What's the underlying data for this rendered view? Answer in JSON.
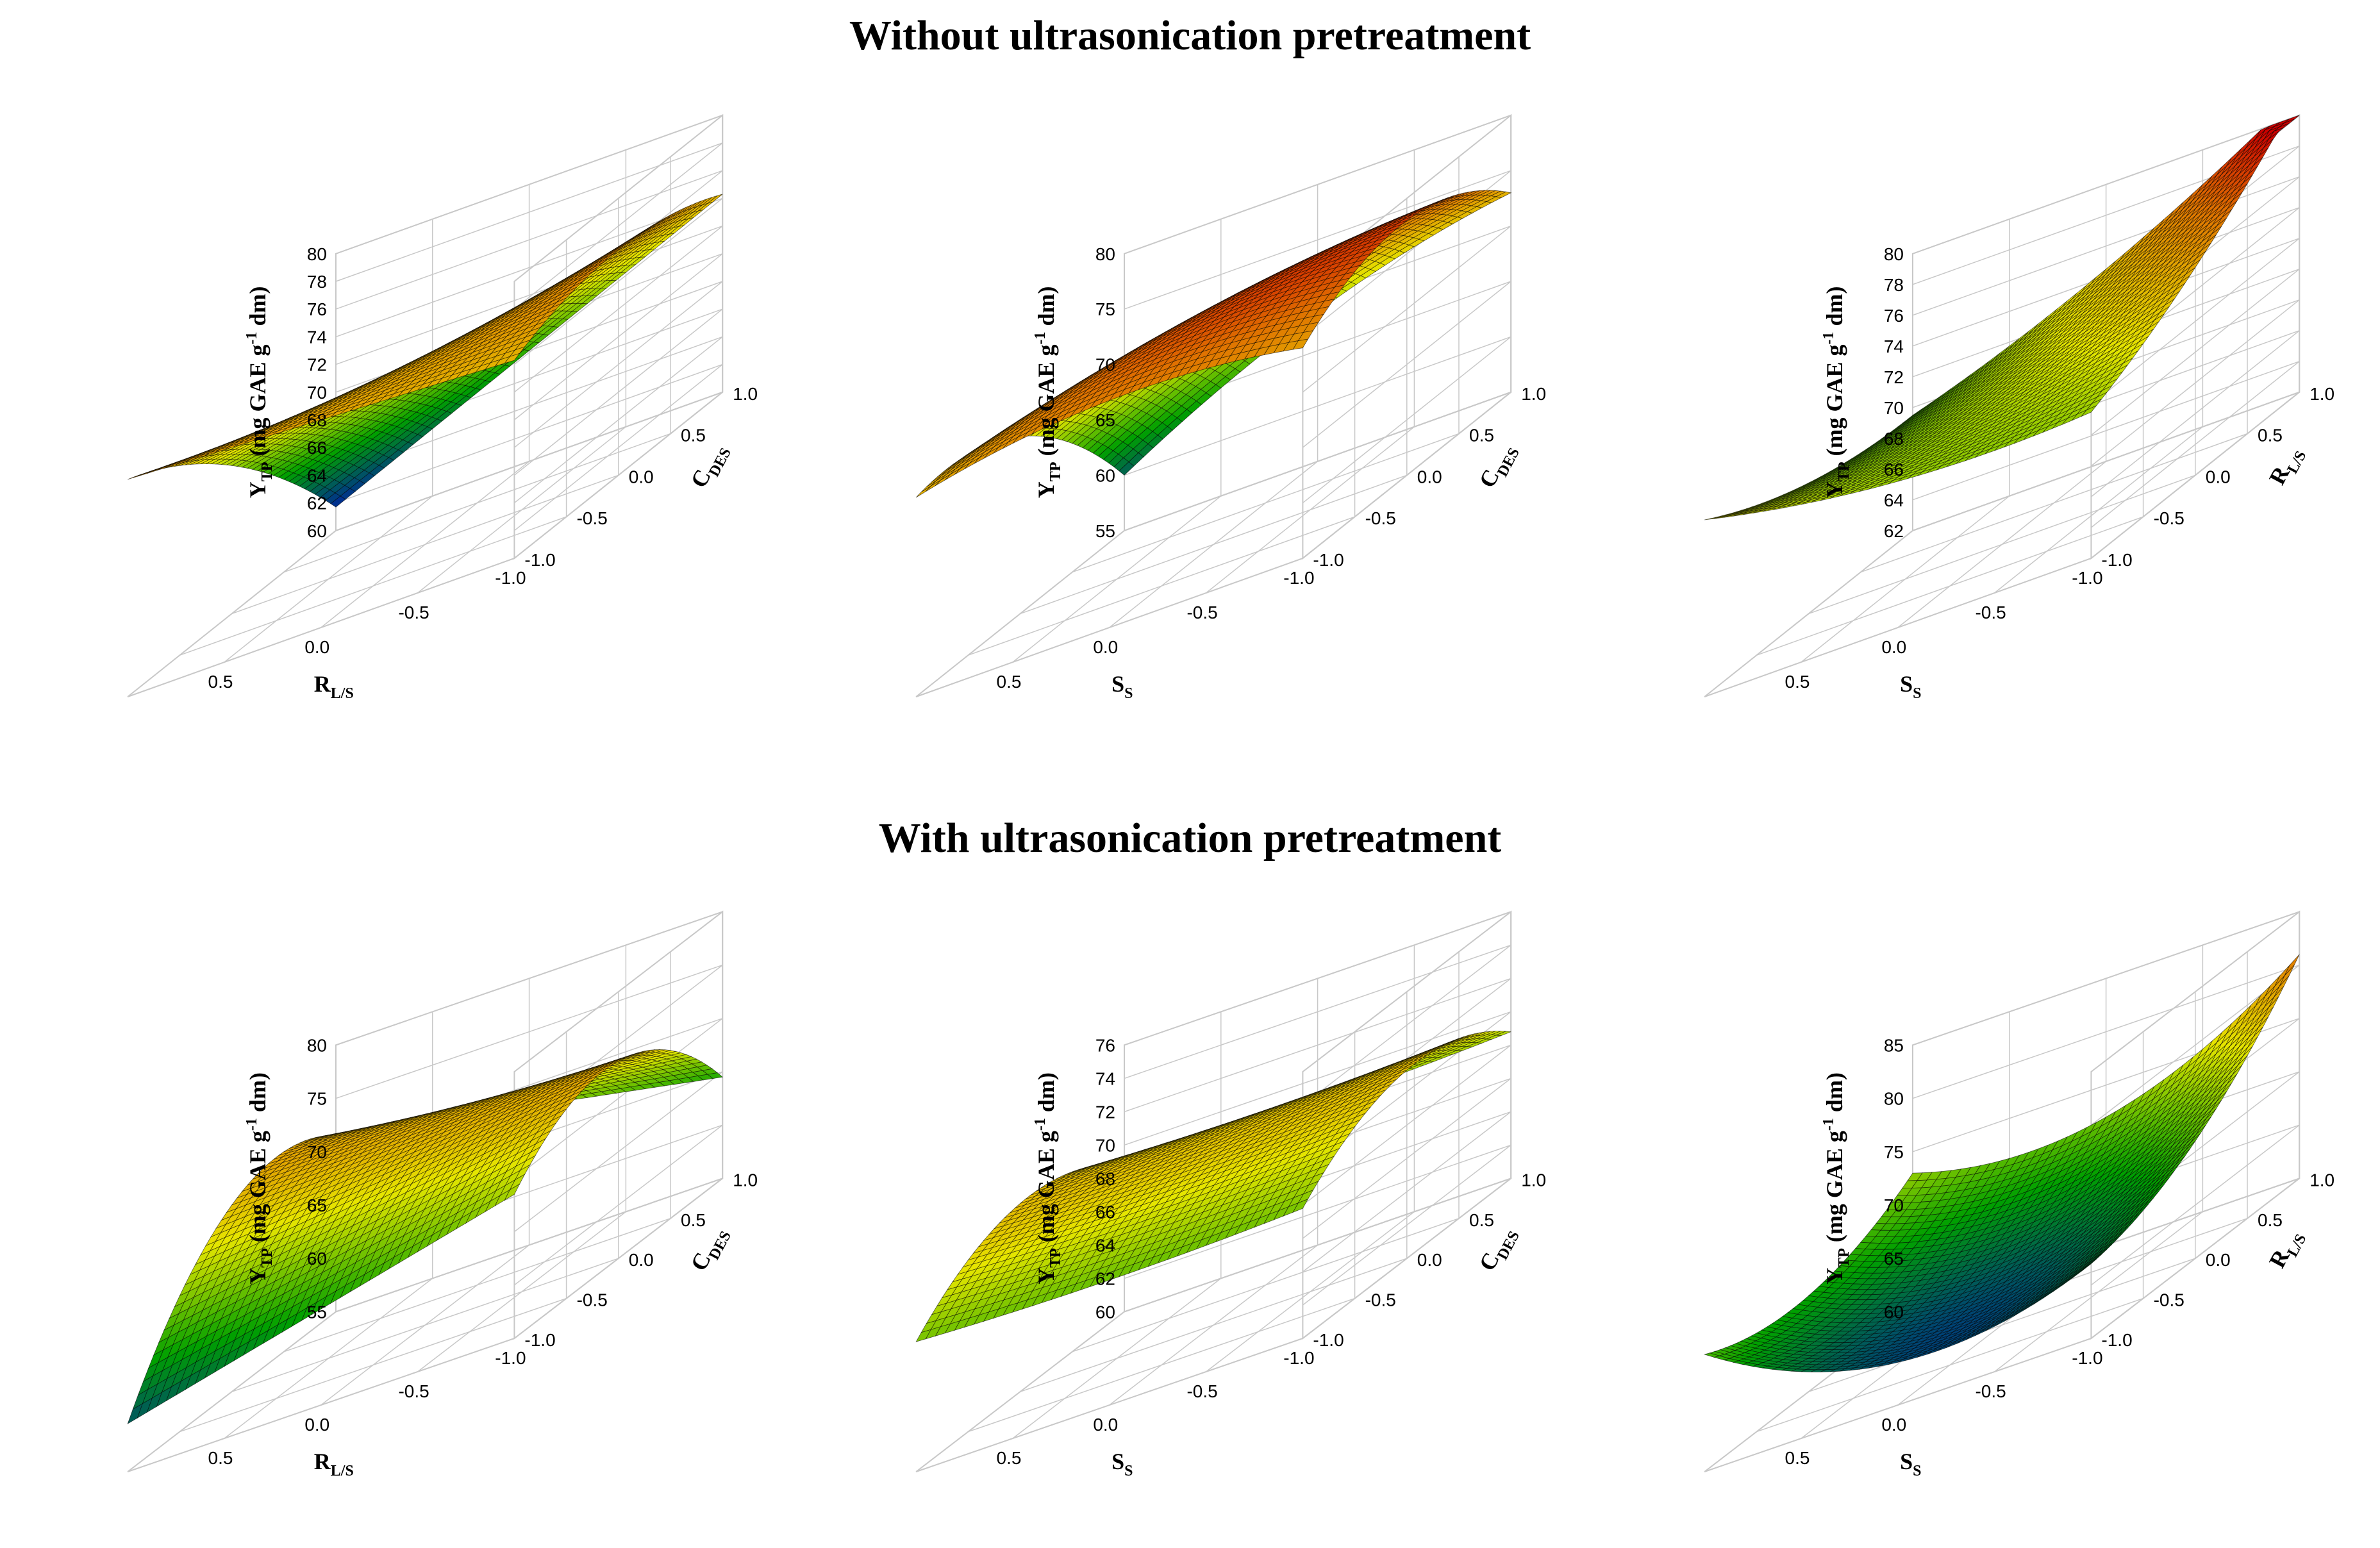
{
  "titles": {
    "top": "Without ultrasonication pretreatment",
    "bottom": "With ultrasonication pretreatment"
  },
  "colors": {
    "low": "#0000cc",
    "mid_low": "#00a000",
    "mid": "#e6e600",
    "high": "#e07000",
    "peak": "#cc0000",
    "grid": "#c8c8c8",
    "mesh": "#000000"
  },
  "chart_data": [
    {
      "type": "surface3d",
      "id": "A",
      "group": "Without ultrasonication pretreatment",
      "title": "",
      "x_label": "R",
      "x_sub": "L/S",
      "y_label": "C",
      "y_sub": "DES",
      "z_label_main": "Y",
      "z_label_sub": "TP",
      "z_label_rest": " (mg GAE g",
      "z_label_sup": "-1",
      "z_label_end": " dm)",
      "x_ticks": [
        "0.5",
        "0.0",
        "-0.5",
        "-1.0"
      ],
      "y_ticks": [
        "-1.0",
        "-0.5",
        "0.0",
        "0.5",
        "1.0"
      ],
      "z_ticks": [
        "60",
        "62",
        "64",
        "66",
        "68",
        "70",
        "72",
        "74",
        "76",
        "78",
        "80"
      ],
      "zlim": [
        60,
        80
      ],
      "coef": {
        "b0": 73.5,
        "b1": -2.8,
        "b2": -3.5,
        "b11": 0.0,
        "b22": -2.0,
        "b12": -3.5
      }
    },
    {
      "type": "surface3d",
      "id": "B",
      "group": "Without ultrasonication pretreatment",
      "title": "",
      "x_label": "S",
      "x_sub": "S",
      "y_label": "C",
      "y_sub": "DES",
      "z_label_main": "Y",
      "z_label_sub": "TP",
      "z_label_rest": " (mg GAE g",
      "z_label_sup": "-1",
      "z_label_end": " dm)",
      "x_ticks": [
        "0.5",
        "0.0",
        "-0.5",
        "-1.0"
      ],
      "y_ticks": [
        "-1.0",
        "-0.5",
        "0.0",
        "0.5",
        "1.0"
      ],
      "z_ticks": [
        "55",
        "60",
        "65",
        "70",
        "75",
        "80"
      ],
      "zlim": [
        55,
        80
      ],
      "coef": {
        "b0": 76.5,
        "b1": -3.5,
        "b2": -3.5,
        "b11": -2.0,
        "b22": -4.5,
        "b12": -3.0
      }
    },
    {
      "type": "surface3d",
      "id": "C",
      "group": "Without ultrasonication pretreatment",
      "title": "",
      "x_label": "S",
      "x_sub": "S",
      "y_label": "R",
      "y_sub": "L/S",
      "z_label_main": "Y",
      "z_label_sub": "TP",
      "z_label_rest": " (mg GAE g",
      "z_label_sup": "-1",
      "z_label_end": " dm)",
      "x_ticks": [
        "0.5",
        "0.0",
        "-0.5",
        "-1.0"
      ],
      "y_ticks": [
        "-1.0",
        "-0.5",
        "0.0",
        "0.5",
        "1.0"
      ],
      "z_ticks": [
        "62",
        "64",
        "66",
        "68",
        "70",
        "72",
        "74",
        "76",
        "78",
        "80"
      ],
      "zlim": [
        62,
        80
      ],
      "coef": {
        "b0": 72.0,
        "b1": -2.5,
        "b2": 1.5,
        "b11": 1.0,
        "b22": 1.0,
        "b12": -3.5
      }
    },
    {
      "type": "surface3d",
      "id": "D",
      "group": "With ultrasonication pretreatment",
      "title": "",
      "x_label": "R",
      "x_sub": "L/S",
      "y_label": "C",
      "y_sub": "DES",
      "z_label_main": "Y",
      "z_label_sub": "TP",
      "z_label_rest": " (mg GAE g",
      "z_label_sup": "-1",
      "z_label_end": " dm)",
      "x_ticks": [
        "0.5",
        "0.0",
        "-0.5",
        "-1.0"
      ],
      "y_ticks": [
        "-1.0",
        "-0.5",
        "0.0",
        "0.5",
        "1.0"
      ],
      "z_ticks": [
        "55",
        "60",
        "65",
        "70",
        "75",
        "80"
      ],
      "zlim": [
        55,
        80
      ],
      "coef": {
        "b0": 73.0,
        "b1": -0.5,
        "b2": 2.0,
        "b11": 0.0,
        "b22": -7.0,
        "b12": 4.0
      }
    },
    {
      "type": "surface3d",
      "id": "E",
      "group": "With ultrasonication pretreatment",
      "title": "",
      "x_label": "S",
      "x_sub": "S",
      "y_label": "C",
      "y_sub": "DES",
      "z_label_main": "Y",
      "z_label_sub": "TP",
      "z_label_rest": " (mg GAE g",
      "z_label_sup": "-1",
      "z_label_end": " dm)",
      "x_ticks": [
        "0.5",
        "0.0",
        "-0.5",
        "-1.0"
      ],
      "y_ticks": [
        "-1.0",
        "-0.5",
        "0.0",
        "0.5",
        "1.0"
      ],
      "z_ticks": [
        "60",
        "62",
        "64",
        "66",
        "68",
        "70",
        "72",
        "74",
        "76"
      ],
      "zlim": [
        60,
        76
      ],
      "coef": {
        "b0": 71.0,
        "b1": 0.0,
        "b2": 0.5,
        "b11": 0.3,
        "b22": -3.0,
        "b12": 0.0
      }
    },
    {
      "type": "surface3d",
      "id": "F",
      "group": "With ultrasonication pretreatment",
      "title": "",
      "x_label": "S",
      "x_sub": "S",
      "y_label": "R",
      "y_sub": "L/S",
      "z_label_main": "Y",
      "z_label_sub": "TP",
      "z_label_rest": " (mg GAE g",
      "z_label_sup": "-1",
      "z_label_end": " dm)",
      "x_ticks": [
        "0.5",
        "0.0",
        "-0.5",
        "-1.0"
      ],
      "y_ticks": [
        "-1.0",
        "-0.5",
        "0.0",
        "0.5",
        "1.0"
      ],
      "z_ticks": [
        "60",
        "65",
        "70",
        "75",
        "80",
        "85"
      ],
      "zlim": [
        60,
        85
      ],
      "coef": {
        "b0": 65.0,
        "b1": -1.0,
        "b2": 4.0,
        "b11": 5.0,
        "b22": 3.0,
        "b12": -3.0
      }
    }
  ]
}
